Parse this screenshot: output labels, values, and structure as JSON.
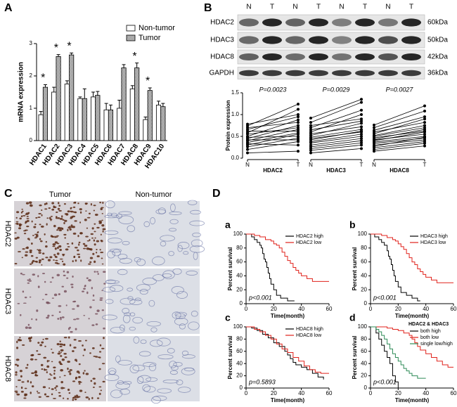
{
  "panel_labels": [
    "A",
    "B",
    "C",
    "D"
  ],
  "blot": {
    "lanes": [
      "N",
      "T",
      "N",
      "T",
      "N",
      "T",
      "N",
      "T"
    ],
    "rows": [
      {
        "name": "HDAC2",
        "size": "60kDa"
      },
      {
        "name": "HDAC3",
        "size": "50kDa"
      },
      {
        "name": "HDAC8",
        "size": "42kDa"
      },
      {
        "name": "GAPDH",
        "size": "36kDa"
      }
    ]
  },
  "ihc": {
    "columns": [
      "Tumor",
      "Non-tumor"
    ],
    "rows": [
      "HDAC2",
      "HDAC3",
      "HDAC8"
    ]
  },
  "chart_data": [
    {
      "type": "bar",
      "ylabel": "mRNA expression",
      "categories": [
        "HDAC1",
        "HDAC2",
        "HDAC3",
        "HDAC4",
        "HDAC5",
        "HDAC6",
        "HDAC7",
        "HDAC8",
        "HDAC9",
        "HDAC10"
      ],
      "series": [
        {
          "name": "Non-tumor",
          "color": "#ffffff",
          "values": [
            0.8,
            1.5,
            1.75,
            1.3,
            1.35,
            0.95,
            1.0,
            1.6,
            0.65,
            1.1
          ],
          "errors": [
            0.1,
            0.15,
            0.1,
            0.05,
            0.15,
            0.2,
            0.25,
            0.1,
            0.08,
            0.12
          ]
        },
        {
          "name": "Tumor",
          "color": "#555555",
          "values": [
            1.65,
            2.6,
            2.65,
            1.3,
            1.4,
            0.95,
            2.25,
            2.25,
            1.55,
            1.05
          ],
          "errors": [
            0.08,
            0.06,
            0.06,
            0.3,
            0.12,
            0.15,
            0.1,
            0.15,
            0.08,
            0.1
          ]
        }
      ],
      "ylim": [
        0,
        3
      ],
      "yticks": [
        0,
        1,
        2,
        3
      ],
      "legend": "upper right",
      "annotations": [
        {
          "category": "HDAC1",
          "text": "*"
        },
        {
          "category": "HDAC2",
          "text": "*"
        },
        {
          "category": "HDAC3",
          "text": "*"
        },
        {
          "category": "HDAC8",
          "text": "*"
        },
        {
          "category": "HDAC9",
          "text": "*"
        }
      ]
    },
    {
      "type": "paired",
      "ylabel": "Protein expression",
      "x_labels": [
        "N",
        "T"
      ],
      "ylim": [
        0,
        1.5
      ],
      "yticks": [
        {
          "value": 0,
          "label": "0.0"
        },
        0.5,
        {
          "value": 1,
          "label": "1.0"
        },
        1.5
      ],
      "groups": [
        {
          "name": "HDAC2",
          "annotation": "P=0.0023",
          "N": [
            0.78,
            0.74,
            0.7,
            0.66,
            0.62,
            0.58,
            0.55,
            0.5,
            0.48,
            0.45,
            0.42,
            0.4,
            0.36,
            0.33,
            0.3,
            0.26,
            0.2,
            0.12
          ],
          "T": [
            1.0,
            1.24,
            0.82,
            0.95,
            0.62,
            1.12,
            0.7,
            0.88,
            0.5,
            0.75,
            0.42,
            0.66,
            0.58,
            0.3,
            0.55,
            0.46,
            0.38,
            0.16
          ]
        },
        {
          "name": "HDAC3",
          "annotation": "P=0.0029",
          "N": [
            0.92,
            0.82,
            0.75,
            0.7,
            0.65,
            0.6,
            0.56,
            0.52,
            0.48,
            0.45,
            0.42,
            0.38,
            0.35,
            0.3,
            0.26,
            0.22,
            0.18,
            0.12
          ],
          "T": [
            1.35,
            1.28,
            0.9,
            1.1,
            0.85,
            1.0,
            0.72,
            0.8,
            0.66,
            0.6,
            0.62,
            0.55,
            0.5,
            0.45,
            0.4,
            0.35,
            0.3,
            0.22
          ]
        },
        {
          "name": "HDAC8",
          "annotation": "P=0.0027",
          "N": [
            0.76,
            0.7,
            0.64,
            0.6,
            0.56,
            0.52,
            0.5,
            0.47,
            0.44,
            0.42,
            0.4,
            0.37,
            0.34,
            0.3,
            0.27,
            0.24,
            0.2,
            0.16
          ],
          "T": [
            1.2,
            1.08,
            0.95,
            0.82,
            0.9,
            0.75,
            0.7,
            0.62,
            0.66,
            0.55,
            0.6,
            0.5,
            0.46,
            0.42,
            0.48,
            0.38,
            0.34,
            0.28
          ]
        }
      ]
    },
    {
      "type": "step",
      "panel": "a",
      "xlabel": "Time(month)",
      "ylabel": "Percent survival",
      "annotation": "p<0.001",
      "xlim": [
        0,
        60
      ],
      "xticks": [
        0,
        20,
        40,
        60
      ],
      "ylim": [
        0,
        100
      ],
      "yticks": [
        0,
        20,
        40,
        60,
        80,
        100
      ],
      "series": [
        {
          "name": "HDAC2 high",
          "color": "#000000",
          "x": [
            0,
            4,
            6,
            8,
            10,
            11,
            12,
            13,
            14,
            15,
            16,
            17,
            18,
            20,
            22,
            25,
            30,
            35
          ],
          "values": [
            100,
            96,
            92,
            88,
            84,
            80,
            72,
            64,
            60,
            52,
            44,
            36,
            28,
            20,
            12,
            8,
            4,
            4
          ]
        },
        {
          "name": "HDAC2 low",
          "color": "#e0221b",
          "x": [
            0,
            6,
            10,
            14,
            18,
            20,
            22,
            24,
            26,
            28,
            30,
            32,
            34,
            36,
            38,
            40,
            44,
            48,
            52,
            60
          ],
          "values": [
            100,
            98,
            96,
            92,
            90,
            86,
            84,
            80,
            74,
            68,
            62,
            58,
            52,
            48,
            44,
            40,
            36,
            32,
            32,
            32
          ]
        }
      ]
    },
    {
      "type": "step",
      "panel": "b",
      "xlabel": "Time(month)",
      "ylabel": "Percent survival",
      "annotation": "p<0.001",
      "xlim": [
        0,
        60
      ],
      "xticks": [
        0,
        20,
        40,
        60
      ],
      "ylim": [
        0,
        100
      ],
      "yticks": [
        0,
        20,
        40,
        60,
        80,
        100
      ],
      "series": [
        {
          "name": "HDAC3 high",
          "color": "#000000",
          "x": [
            0,
            3,
            6,
            8,
            10,
            12,
            13,
            14,
            15,
            16,
            17,
            18,
            20,
            22,
            26,
            30,
            34,
            36
          ],
          "values": [
            100,
            96,
            92,
            88,
            84,
            76,
            68,
            64,
            56,
            48,
            40,
            32,
            24,
            16,
            12,
            8,
            4,
            4
          ]
        },
        {
          "name": "HDAC3 low",
          "color": "#e0221b",
          "x": [
            0,
            8,
            12,
            16,
            18,
            20,
            22,
            24,
            26,
            28,
            30,
            32,
            34,
            36,
            38,
            40,
            44,
            48,
            54,
            60
          ],
          "values": [
            100,
            98,
            95,
            92,
            90,
            86,
            82,
            78,
            72,
            66,
            60,
            56,
            50,
            46,
            42,
            38,
            34,
            30,
            30,
            30
          ]
        }
      ]
    },
    {
      "type": "step",
      "panel": "c",
      "xlabel": "Time(month)",
      "ylabel": "Percent survival",
      "annotation": "p=0.5893",
      "xlim": [
        0,
        60
      ],
      "xticks": [
        0,
        20,
        40,
        60
      ],
      "ylim": [
        0,
        100
      ],
      "yticks": [
        0,
        20,
        40,
        60,
        80,
        100
      ],
      "series": [
        {
          "name": "HDAC8 high",
          "color": "#000000",
          "x": [
            0,
            4,
            8,
            12,
            16,
            20,
            24,
            28,
            30,
            32,
            34,
            36,
            40,
            44,
            48,
            52,
            56
          ],
          "values": [
            100,
            98,
            94,
            88,
            82,
            74,
            68,
            60,
            54,
            48,
            42,
            38,
            34,
            30,
            24,
            18,
            14
          ]
        },
        {
          "name": "HDAC8 low",
          "color": "#e0221b",
          "x": [
            0,
            6,
            10,
            14,
            18,
            22,
            26,
            30,
            34,
            38,
            42,
            46,
            50,
            54,
            60
          ],
          "values": [
            100,
            96,
            92,
            86,
            80,
            72,
            64,
            58,
            50,
            44,
            36,
            30,
            26,
            24,
            24
          ]
        }
      ]
    },
    {
      "type": "step",
      "panel": "d",
      "xlabel": "Time(month)",
      "ylabel": "Percent survival",
      "annotation": "p<0.001",
      "legend_title": "HDAC2 & HDAC3",
      "xlim": [
        0,
        60
      ],
      "xticks": [
        0,
        20,
        40,
        60
      ],
      "ylim": [
        0,
        100
      ],
      "yticks": [
        0,
        20,
        40,
        60,
        80,
        100
      ],
      "series": [
        {
          "name": "both high",
          "color": "#000000",
          "x": [
            0,
            4,
            6,
            8,
            10,
            12,
            14,
            16,
            18,
            20
          ],
          "values": [
            100,
            90,
            80,
            70,
            60,
            50,
            40,
            20,
            10,
            0
          ]
        },
        {
          "name": "both low",
          "color": "#e0221b",
          "x": [
            0,
            12,
            16,
            20,
            24,
            28,
            30,
            32,
            34,
            36,
            40,
            44,
            48,
            52,
            56,
            60
          ],
          "values": [
            100,
            98,
            96,
            94,
            90,
            86,
            80,
            74,
            68,
            62,
            56,
            50,
            44,
            38,
            34,
            34
          ]
        },
        {
          "name": "single low/high",
          "color": "#2e8b57",
          "x": [
            0,
            4,
            6,
            8,
            10,
            12,
            14,
            16,
            18,
            20,
            22,
            24,
            26,
            28,
            30,
            34,
            40
          ],
          "values": [
            100,
            96,
            92,
            86,
            80,
            72,
            64,
            56,
            50,
            44,
            38,
            32,
            28,
            24,
            20,
            16,
            16
          ]
        }
      ]
    }
  ]
}
